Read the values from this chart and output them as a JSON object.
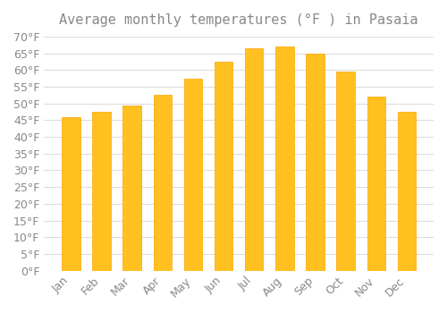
{
  "title": "Average monthly temperatures (°F ) in Pasaia",
  "months": [
    "Jan",
    "Feb",
    "Mar",
    "Apr",
    "May",
    "Jun",
    "Jul",
    "Aug",
    "Sep",
    "Oct",
    "Nov",
    "Dec"
  ],
  "values": [
    46,
    47.5,
    49.5,
    52.5,
    57.5,
    62.5,
    66.5,
    67,
    65,
    59.5,
    52,
    47.5
  ],
  "bar_color": "#FFC020",
  "bar_edge_color": "#FFA500",
  "background_color": "#FFFFFF",
  "grid_color": "#DDDDDD",
  "text_color": "#888888",
  "ylim": [
    0,
    70
  ],
  "ytick_step": 5,
  "title_fontsize": 11,
  "tick_fontsize": 9
}
